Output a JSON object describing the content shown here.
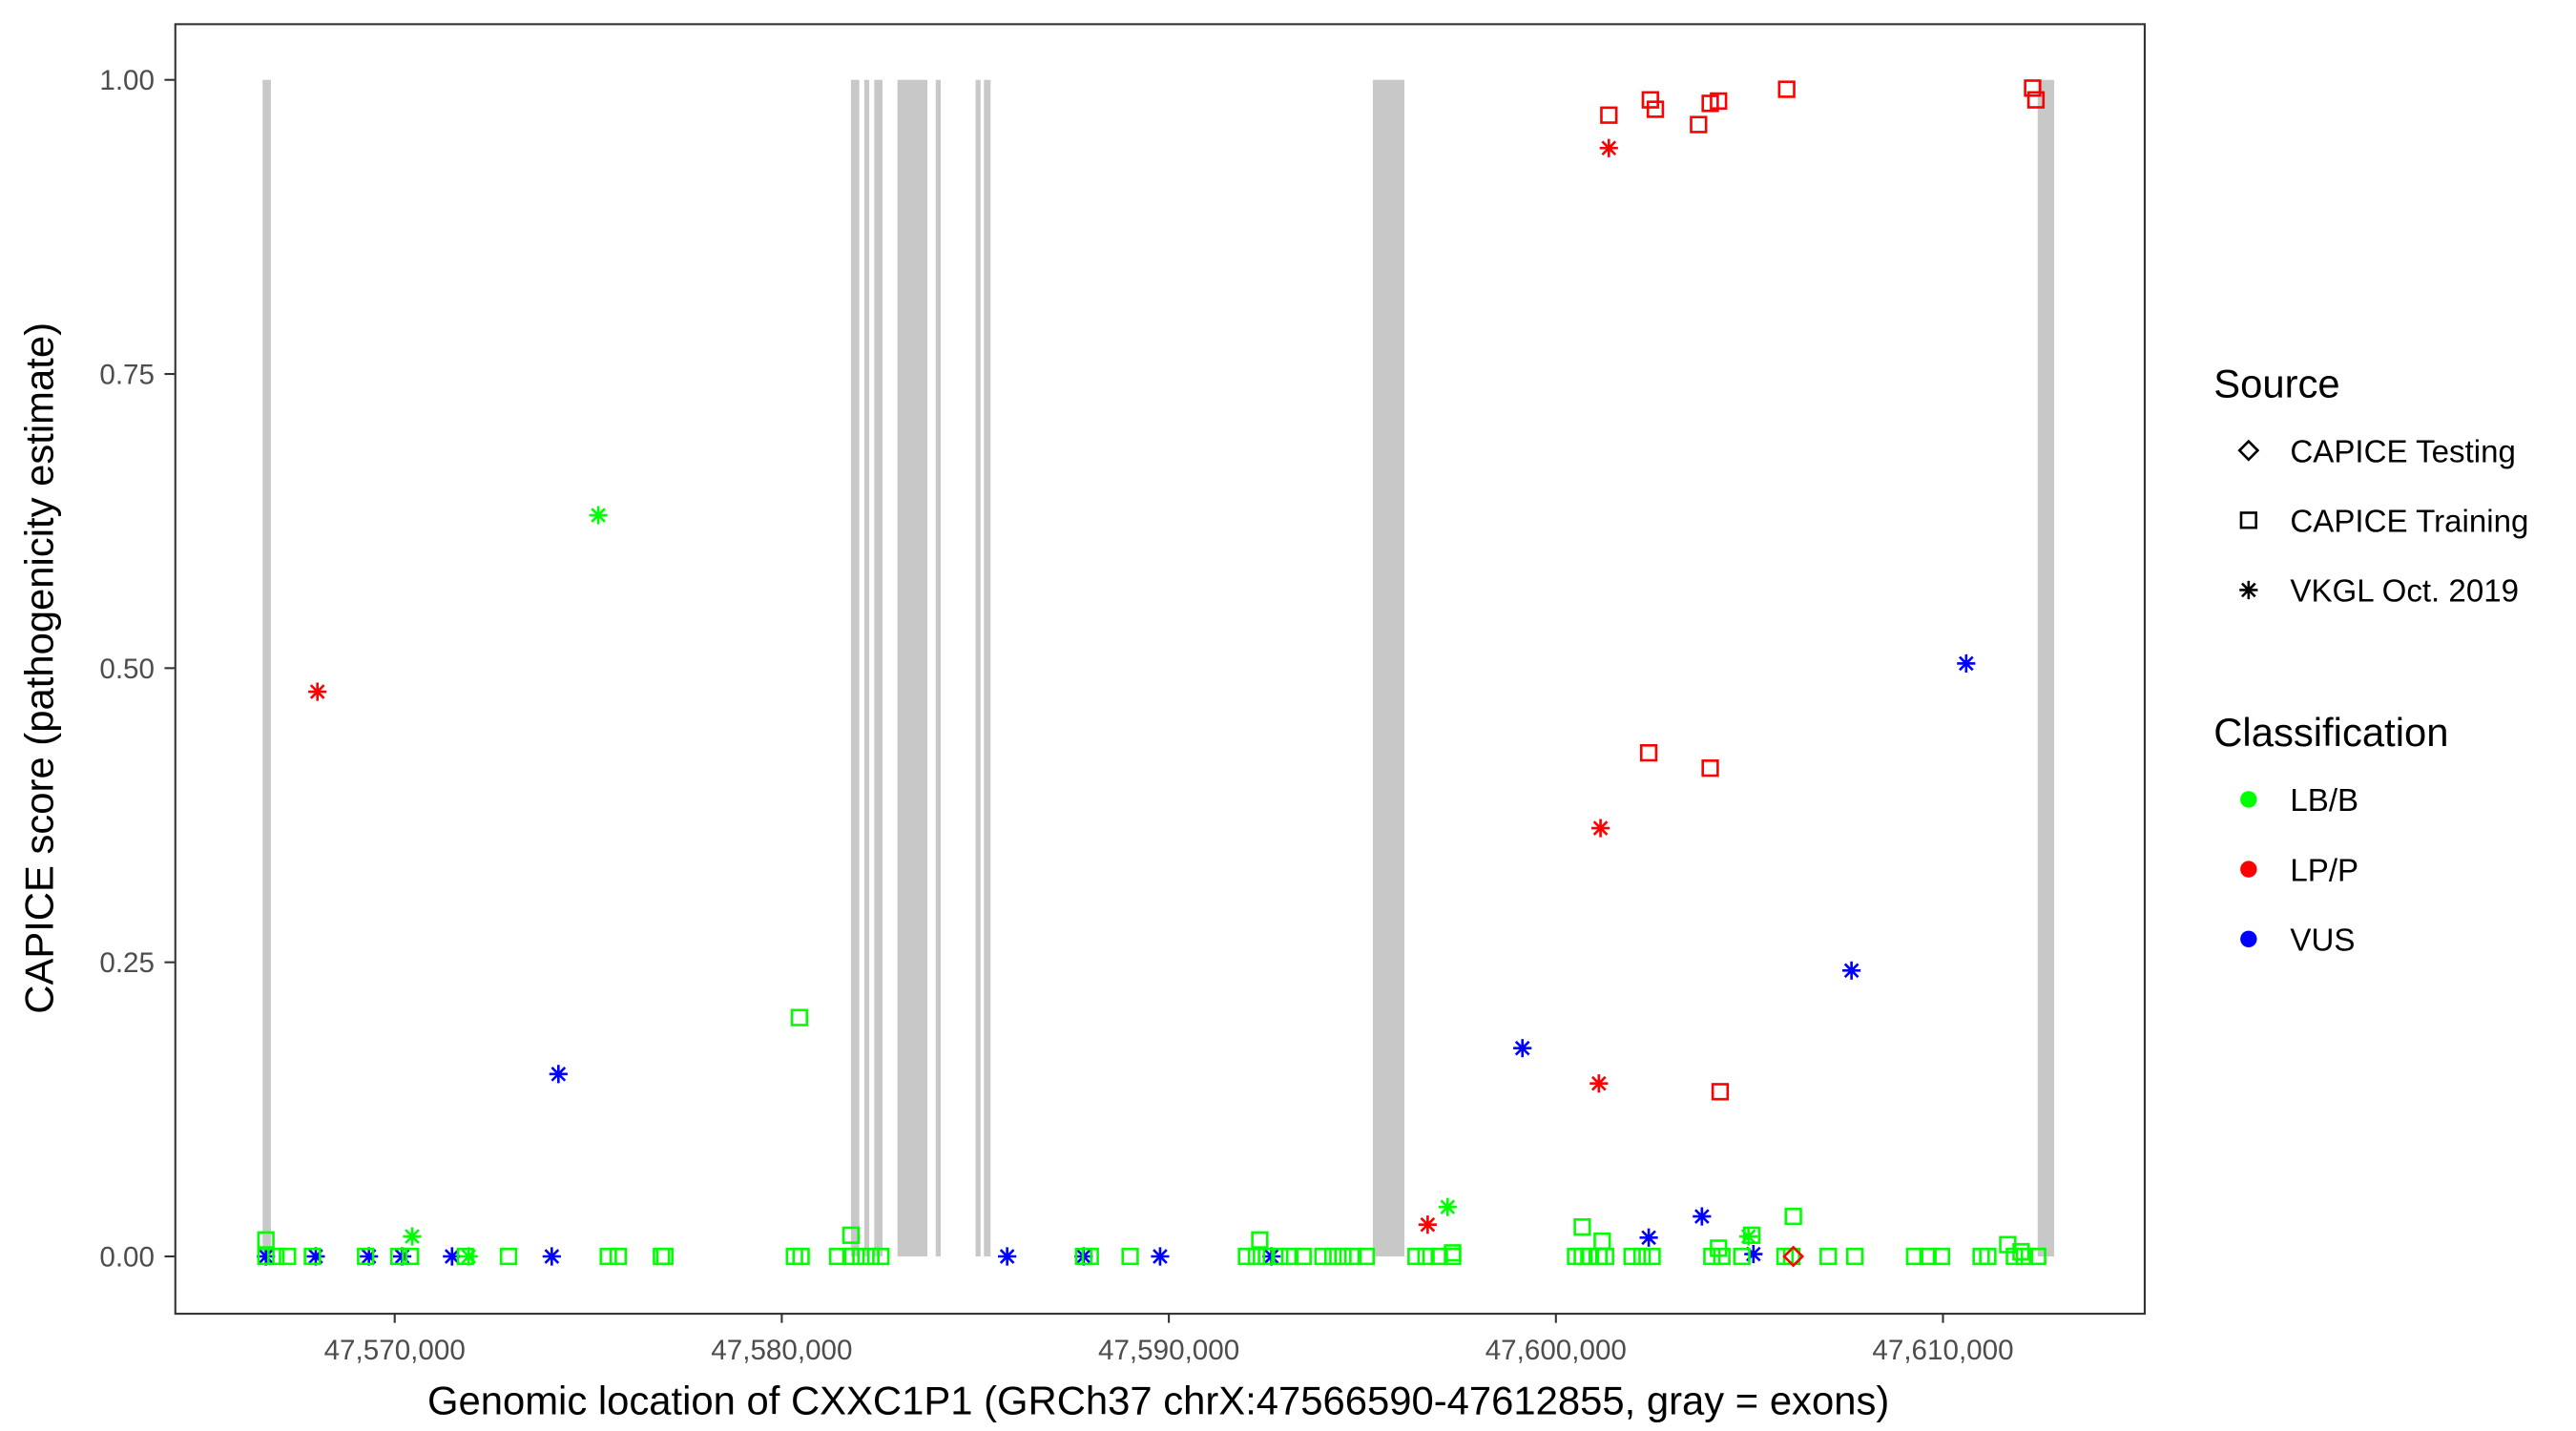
{
  "chart_data": {
    "type": "scatter",
    "xlabel": "Genomic location of CXXC1P1 (GRCh37 chrX:47566590-47612855, gray = exons)",
    "ylabel": "CAPICE score (pathogenicity estimate)",
    "xlim": [
      47564300,
      47614800
    ],
    "ylim": [
      -0.047,
      1.047
    ],
    "x_ticks": [
      47570000,
      47580000,
      47590000,
      47600000,
      47610000
    ],
    "x_tick_labels": [
      "47,570,000",
      "47,580,000",
      "47,590,000",
      "47,600,000",
      "47,610,000"
    ],
    "y_ticks": [
      0,
      0.25,
      0.5,
      0.75,
      1.0
    ],
    "y_tick_labels": [
      "0.00",
      "0.25",
      "0.50",
      "0.75",
      "1.00"
    ],
    "grid": false,
    "exons": [
      [
        47566587,
        47566801
      ],
      [
        47581787,
        47582002
      ],
      [
        47582131,
        47582216
      ],
      [
        47582388,
        47582603
      ],
      [
        47582989,
        47583762
      ],
      [
        47583977,
        47584063
      ],
      [
        47585008,
        47585137
      ],
      [
        47585223,
        47585395
      ],
      [
        47595270,
        47596086
      ],
      [
        47612446,
        47612873
      ]
    ],
    "legend": {
      "placement": "right",
      "source_title": "Source",
      "sources": [
        {
          "label": "CAPICE Testing",
          "shape": "diamond"
        },
        {
          "label": "CAPICE Training",
          "shape": "square"
        },
        {
          "label": "VKGL Oct. 2019",
          "shape": "asterisk"
        }
      ],
      "class_title": "Classification",
      "classes": [
        {
          "label": "LB/B",
          "color": "#00ff00"
        },
        {
          "label": "LP/P",
          "color": "#ff0000"
        },
        {
          "label": "VUS",
          "color": "#0000ff"
        }
      ]
    },
    "points_columns": [
      "position",
      "score",
      "source_index",
      "class_index"
    ],
    "points": [
      [
        47601368,
        0.97,
        1,
        1
      ],
      [
        47602441,
        0.983,
        1,
        1
      ],
      [
        47602570,
        0.975,
        1,
        1
      ],
      [
        47603686,
        0.962,
        1,
        1
      ],
      [
        47603987,
        0.98,
        1,
        1
      ],
      [
        47604202,
        0.982,
        1,
        1
      ],
      [
        47605962,
        0.992,
        1,
        1
      ],
      [
        47612316,
        0.993,
        1,
        1
      ],
      [
        47612402,
        0.983,
        1,
        1
      ],
      [
        47601368,
        0.942,
        2,
        1
      ],
      [
        47568003,
        0.48,
        2,
        1
      ],
      [
        47575260,
        0.63,
        2,
        0
      ],
      [
        47574230,
        0.155,
        2,
        2
      ],
      [
        47580456,
        0.203,
        1,
        0
      ],
      [
        47602398,
        0.428,
        1,
        1
      ],
      [
        47603987,
        0.415,
        1,
        1
      ],
      [
        47604244,
        0.14,
        1,
        1
      ],
      [
        47601153,
        0.364,
        2,
        1
      ],
      [
        47601110,
        0.147,
        2,
        1
      ],
      [
        47596687,
        0.027,
        2,
        1
      ],
      [
        47599135,
        0.177,
        2,
        2
      ],
      [
        47610600,
        0.504,
        2,
        2
      ],
      [
        47607637,
        0.243,
        2,
        2
      ],
      [
        47597203,
        0.042,
        2,
        0
      ],
      [
        47566672,
        0.0,
        2,
        2
      ],
      [
        47567960,
        0.0,
        2,
        2
      ],
      [
        47569334,
        0.0,
        2,
        2
      ],
      [
        47570193,
        0.0,
        2,
        2
      ],
      [
        47571481,
        0.0,
        2,
        2
      ],
      [
        47574058,
        0.0,
        2,
        2
      ],
      [
        47585823,
        0.0,
        2,
        2
      ],
      [
        47587799,
        0.0,
        2,
        2
      ],
      [
        47589774,
        0.0,
        2,
        2
      ],
      [
        47592651,
        0.0,
        2,
        2
      ],
      [
        47605103,
        0.002,
        2,
        2
      ],
      [
        47602398,
        0.016,
        2,
        2
      ],
      [
        47603772,
        0.034,
        2,
        2
      ],
      [
        47570451,
        0.017,
        2,
        0
      ],
      [
        47604975,
        0.017,
        2,
        0
      ],
      [
        47571911,
        0.0,
        2,
        0
      ],
      [
        47566672,
        0.0,
        1,
        0
      ],
      [
        47566930,
        0.0,
        1,
        0
      ],
      [
        47567230,
        0.0,
        1,
        0
      ],
      [
        47567874,
        0.0,
        1,
        0
      ],
      [
        47569249,
        0.0,
        1,
        0
      ],
      [
        47570107,
        0.0,
        1,
        0
      ],
      [
        47570408,
        0.0,
        1,
        0
      ],
      [
        47571825,
        0.0,
        1,
        0
      ],
      [
        47572941,
        0.0,
        1,
        0
      ],
      [
        47575518,
        0.0,
        1,
        0
      ],
      [
        47575775,
        0.0,
        1,
        0
      ],
      [
        47576892,
        0.0,
        1,
        0
      ],
      [
        47576978,
        0.0,
        1,
        0
      ],
      [
        47580327,
        0.0,
        1,
        0
      ],
      [
        47580499,
        0.0,
        1,
        0
      ],
      [
        47581444,
        0.0,
        1,
        0
      ],
      [
        47581787,
        0.0,
        1,
        0
      ],
      [
        47582045,
        0.0,
        1,
        0
      ],
      [
        47582302,
        0.0,
        1,
        0
      ],
      [
        47582560,
        0.0,
        1,
        0
      ],
      [
        47587799,
        0.0,
        1,
        0
      ],
      [
        47587970,
        0.0,
        1,
        0
      ],
      [
        47589001,
        0.0,
        1,
        0
      ],
      [
        47592007,
        0.0,
        1,
        0
      ],
      [
        47592264,
        0.0,
        1,
        0
      ],
      [
        47592522,
        0.0,
        1,
        0
      ],
      [
        47592866,
        0.0,
        1,
        0
      ],
      [
        47593123,
        0.0,
        1,
        0
      ],
      [
        47593467,
        0.0,
        1,
        0
      ],
      [
        47593982,
        0.0,
        1,
        0
      ],
      [
        47594240,
        0.0,
        1,
        0
      ],
      [
        47594497,
        0.0,
        1,
        0
      ],
      [
        47594755,
        0.0,
        1,
        0
      ],
      [
        47595098,
        0.0,
        1,
        0
      ],
      [
        47596387,
        0.0,
        1,
        0
      ],
      [
        47596644,
        0.0,
        1,
        0
      ],
      [
        47596988,
        0.0,
        1,
        0
      ],
      [
        47597331,
        0.0,
        1,
        0
      ],
      [
        47600509,
        0.0,
        1,
        0
      ],
      [
        47600681,
        0.0,
        1,
        0
      ],
      [
        47600853,
        0.0,
        1,
        0
      ],
      [
        47601110,
        0.0,
        1,
        0
      ],
      [
        47601282,
        0.0,
        1,
        0
      ],
      [
        47601969,
        0.0,
        1,
        0
      ],
      [
        47602226,
        0.0,
        1,
        0
      ],
      [
        47602484,
        0.0,
        1,
        0
      ],
      [
        47604030,
        0.0,
        1,
        0
      ],
      [
        47604287,
        0.0,
        1,
        0
      ],
      [
        47604803,
        0.0,
        1,
        0
      ],
      [
        47605919,
        0.0,
        1,
        0
      ],
      [
        47606091,
        0.0,
        1,
        0
      ],
      [
        47607036,
        0.0,
        1,
        0
      ],
      [
        47607722,
        0.0,
        1,
        0
      ],
      [
        47609268,
        0.0,
        1,
        0
      ],
      [
        47609612,
        0.0,
        1,
        0
      ],
      [
        47609960,
        0.0,
        1,
        0
      ],
      [
        47610986,
        0.0,
        1,
        0
      ],
      [
        47611158,
        0.0,
        1,
        0
      ],
      [
        47611846,
        0.0,
        1,
        0
      ],
      [
        47612103,
        0.0,
        1,
        0
      ],
      [
        47612445,
        0.0,
        1,
        0
      ],
      [
        47566672,
        0.014,
        1,
        0
      ],
      [
        47581787,
        0.018,
        1,
        0
      ],
      [
        47592350,
        0.014,
        1,
        0
      ],
      [
        47597331,
        0.003,
        1,
        0
      ],
      [
        47600681,
        0.025,
        1,
        0
      ],
      [
        47601196,
        0.013,
        1,
        0
      ],
      [
        47604202,
        0.007,
        1,
        0
      ],
      [
        47605060,
        0.018,
        1,
        0
      ],
      [
        47606134,
        0.034,
        1,
        0
      ],
      [
        47611674,
        0.01,
        1,
        0
      ],
      [
        47612017,
        0.004,
        1,
        0
      ],
      [
        47606134,
        0.0,
        0,
        1
      ]
    ]
  }
}
